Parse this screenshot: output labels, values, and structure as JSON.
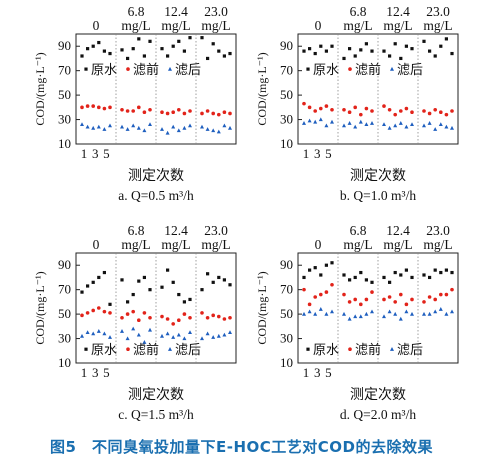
{
  "caption": "图5　不同臭氧投加量下E-HOC工艺对COD的去除效果",
  "colors": {
    "raw": "#111111",
    "before": "#e2231a",
    "after": "#1f5fbf",
    "caption": "#1a6fb0"
  },
  "chart_data": [
    {
      "type": "scatter",
      "subtitle": "a. Q=0.5 m³/h",
      "ylabel": "COD/(mg·L⁻¹)",
      "xlabel": "测定次数",
      "x_ticks": [
        "1",
        "3",
        "5"
      ],
      "y_ticks": [
        10,
        30,
        50,
        70,
        90
      ],
      "ylim": [
        10,
        100
      ],
      "groups": [
        "0",
        "6.8 mg/L",
        "12.4 mg/L",
        "23.0 mg/L"
      ],
      "legend": [
        "原水",
        "滤前",
        "滤后"
      ],
      "legend_position": "bottom-center",
      "series": [
        {
          "name": "原水",
          "values": [
            [
              82,
              88,
              90,
              93,
              86,
              84
            ],
            [
              87,
              80,
              88,
              96,
              82,
              94
            ],
            [
              88,
              82,
              90,
              94,
              86,
              97
            ],
            [
              97,
              80,
              92,
              86,
              82,
              84
            ]
          ]
        },
        {
          "name": "滤前",
          "values": [
            [
              40,
              41,
              41,
              40,
              39,
              40
            ],
            [
              38,
              37,
              37,
              40,
              36,
              38
            ],
            [
              36,
              35,
              36,
              38,
              35,
              37
            ],
            [
              35,
              37,
              35,
              34,
              36,
              35
            ]
          ]
        },
        {
          "name": "滤后",
          "values": [
            [
              26,
              24,
              23,
              24,
              22,
              25
            ],
            [
              24,
              22,
              25,
              23,
              21,
              26
            ],
            [
              22,
              19,
              24,
              21,
              23,
              25
            ],
            [
              24,
              22,
              21,
              20,
              25,
              23
            ]
          ]
        }
      ]
    },
    {
      "type": "scatter",
      "subtitle": "b. Q=1.0 m³/h",
      "ylabel": "COD/(mg·L⁻¹)",
      "xlabel": "测定次数",
      "x_ticks": [
        "1",
        "3",
        "5"
      ],
      "y_ticks": [
        10,
        30,
        50,
        70,
        90
      ],
      "ylim": [
        10,
        100
      ],
      "groups": [
        "0",
        "6.8 mg/L",
        "12.4 mg/L",
        "23.0 mg/L"
      ],
      "legend": [
        "原水",
        "滤前",
        "滤后"
      ],
      "legend_position": "bottom-center",
      "series": [
        {
          "name": "原水",
          "values": [
            [
              86,
              88,
              84,
              90,
              86,
              90
            ],
            [
              80,
              88,
              82,
              87,
              92,
              86
            ],
            [
              86,
              82,
              92,
              80,
              90,
              88
            ],
            [
              94,
              86,
              82,
              90,
              96,
              84
            ]
          ]
        },
        {
          "name": "滤前",
          "values": [
            [
              43,
              40,
              37,
              39,
              41,
              38
            ],
            [
              38,
              36,
              40,
              34,
              39,
              37
            ],
            [
              41,
              38,
              34,
              37,
              39,
              36
            ],
            [
              37,
              35,
              38,
              36,
              34,
              37
            ]
          ]
        },
        {
          "name": "滤后",
          "values": [
            [
              27,
              29,
              28,
              30,
              25,
              28
            ],
            [
              25,
              27,
              24,
              28,
              26,
              27
            ],
            [
              26,
              23,
              25,
              27,
              24,
              26
            ],
            [
              25,
              27,
              22,
              26,
              24,
              23
            ]
          ]
        }
      ]
    },
    {
      "type": "scatter",
      "subtitle": "c. Q=1.5 m³/h",
      "ylabel": "COD/(mg·L⁻¹)",
      "xlabel": "测定次数",
      "x_ticks": [
        "1",
        "3",
        "5"
      ],
      "y_ticks": [
        10,
        30,
        50,
        70,
        90
      ],
      "ylim": [
        10,
        100
      ],
      "groups": [
        "0",
        "6.8 mg/L",
        "12.4 mg/L",
        "23.0 mg/L"
      ],
      "legend": [
        "原水",
        "滤前",
        "滤后"
      ],
      "legend_position": "bottom-center",
      "series": [
        {
          "name": "原水",
          "values": [
            [
              68,
              73,
              76,
              80,
              84,
              58
            ],
            [
              78,
              60,
              66,
              77,
              80,
              70
            ],
            [
              72,
              86,
              76,
              66,
              60,
              62
            ],
            [
              70,
              83,
              76,
              80,
              78,
              74
            ]
          ]
        },
        {
          "name": "滤前",
          "values": [
            [
              49,
              51,
              53,
              55,
              52,
              51
            ],
            [
              47,
              50,
              52,
              45,
              51,
              47
            ],
            [
              48,
              46,
              42,
              45,
              50,
              47
            ],
            [
              51,
              47,
              49,
              48,
              46,
              47
            ]
          ]
        },
        {
          "name": "滤后",
          "values": [
            [
              32,
              35,
              34,
              36,
              34,
              31
            ],
            [
              36,
              30,
              38,
              33,
              27,
              37
            ],
            [
              32,
              34,
              31,
              33,
              30,
              35
            ],
            [
              30,
              34,
              31,
              32,
              33,
              35
            ]
          ]
        }
      ]
    },
    {
      "type": "scatter",
      "subtitle": "d. Q=2.0 m³/h",
      "ylabel": "COD/(mg·L⁻¹)",
      "xlabel": "测定次数",
      "x_ticks": [
        "1",
        "3",
        "5"
      ],
      "y_ticks": [
        10,
        30,
        50,
        70,
        90
      ],
      "ylim": [
        10,
        100
      ],
      "groups": [
        "0",
        "6.8 mg/L",
        "12.4 mg/L",
        "23.0 mg/L"
      ],
      "legend": [
        "原水",
        "滤前",
        "滤后"
      ],
      "legend_position": "bottom-center",
      "series": [
        {
          "name": "原水",
          "values": [
            [
              80,
              86,
              88,
              82,
              90,
              92
            ],
            [
              82,
              78,
              80,
              84,
              78,
              76
            ],
            [
              80,
              76,
              84,
              82,
              86,
              80
            ],
            [
              82,
              80,
              86,
              84,
              86,
              84
            ]
          ]
        },
        {
          "name": "滤前",
          "values": [
            [
              70,
              58,
              64,
              66,
              68,
              74
            ],
            [
              66,
              60,
              62,
              58,
              62,
              68
            ],
            [
              62,
              64,
              60,
              66,
              58,
              62
            ],
            [
              60,
              64,
              62,
              66,
              66,
              70
            ]
          ]
        },
        {
          "name": "滤后",
          "values": [
            [
              50,
              52,
              50,
              54,
              50,
              52
            ],
            [
              50,
              46,
              48,
              48,
              50,
              52
            ],
            [
              48,
              52,
              50,
              46,
              52,
              50
            ],
            [
              50,
              50,
              52,
              54,
              50,
              52
            ]
          ]
        }
      ]
    }
  ]
}
